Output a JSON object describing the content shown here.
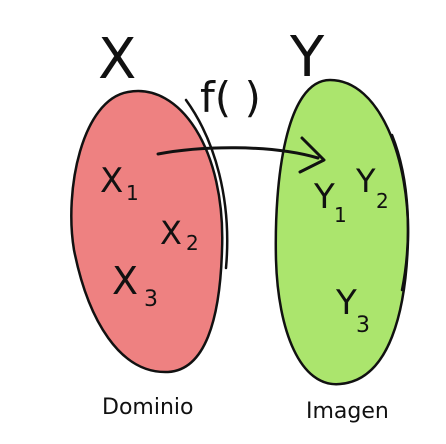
{
  "diagram": {
    "domain_set": {
      "name": "X",
      "color": "#ee8181",
      "caption": "Dominio"
    },
    "codomain_set": {
      "name": "Y",
      "color": "#abe56d",
      "caption": "Imagen"
    },
    "function_label": "f( )",
    "domain_elements": [
      {
        "label": "X",
        "sub": "1"
      },
      {
        "label": "X",
        "sub": "2"
      },
      {
        "label": "X",
        "sub": "3"
      }
    ],
    "codomain_elements": [
      {
        "label": "Y",
        "sub": "1"
      },
      {
        "label": "Y",
        "sub": "2"
      },
      {
        "label": "Y",
        "sub": "3"
      }
    ]
  }
}
